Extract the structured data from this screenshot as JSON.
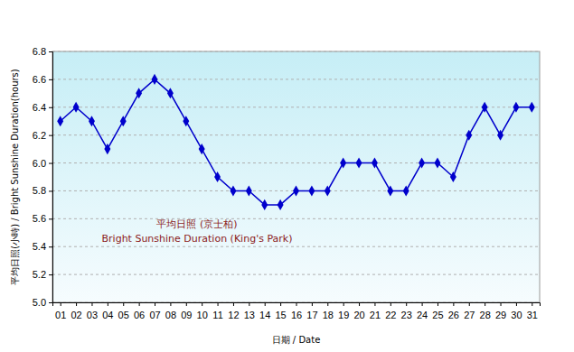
{
  "chart_data": {
    "type": "line",
    "x_label": "日期 / Date",
    "y_label": "平均日照(小時) / Bright Sunshine Duration(hours)",
    "annotations": [
      "平均日照 (京士柏)",
      "Bright Sunshine Duration (King's Park)"
    ],
    "categories": [
      "01",
      "02",
      "03",
      "04",
      "05",
      "06",
      "07",
      "08",
      "09",
      "10",
      "11",
      "12",
      "13",
      "14",
      "15",
      "16",
      "17",
      "18",
      "19",
      "20",
      "21",
      "22",
      "23",
      "24",
      "25",
      "26",
      "27",
      "28",
      "29",
      "30",
      "31"
    ],
    "values": [
      6.3,
      6.4,
      6.3,
      6.1,
      6.3,
      6.5,
      6.6,
      6.5,
      6.3,
      6.1,
      5.9,
      5.8,
      5.8,
      5.7,
      5.7,
      5.8,
      5.8,
      5.8,
      6.0,
      6.0,
      6.0,
      5.8,
      5.8,
      6.0,
      6.0,
      5.9,
      6.2,
      6.4,
      6.2,
      6.4,
      6.4
    ],
    "color": "#0000cc",
    "marker": "diamond",
    "line_style": "solid",
    "ylim": [
      5.0,
      6.8
    ],
    "yticks": [
      {
        "value": 5,
        "label": "5.0"
      },
      5.2,
      5.4,
      5.6,
      5.8,
      {
        "value": 6,
        "label": "6.0"
      },
      6.2,
      6.4,
      6.6,
      6.8
    ],
    "grid": true
  }
}
